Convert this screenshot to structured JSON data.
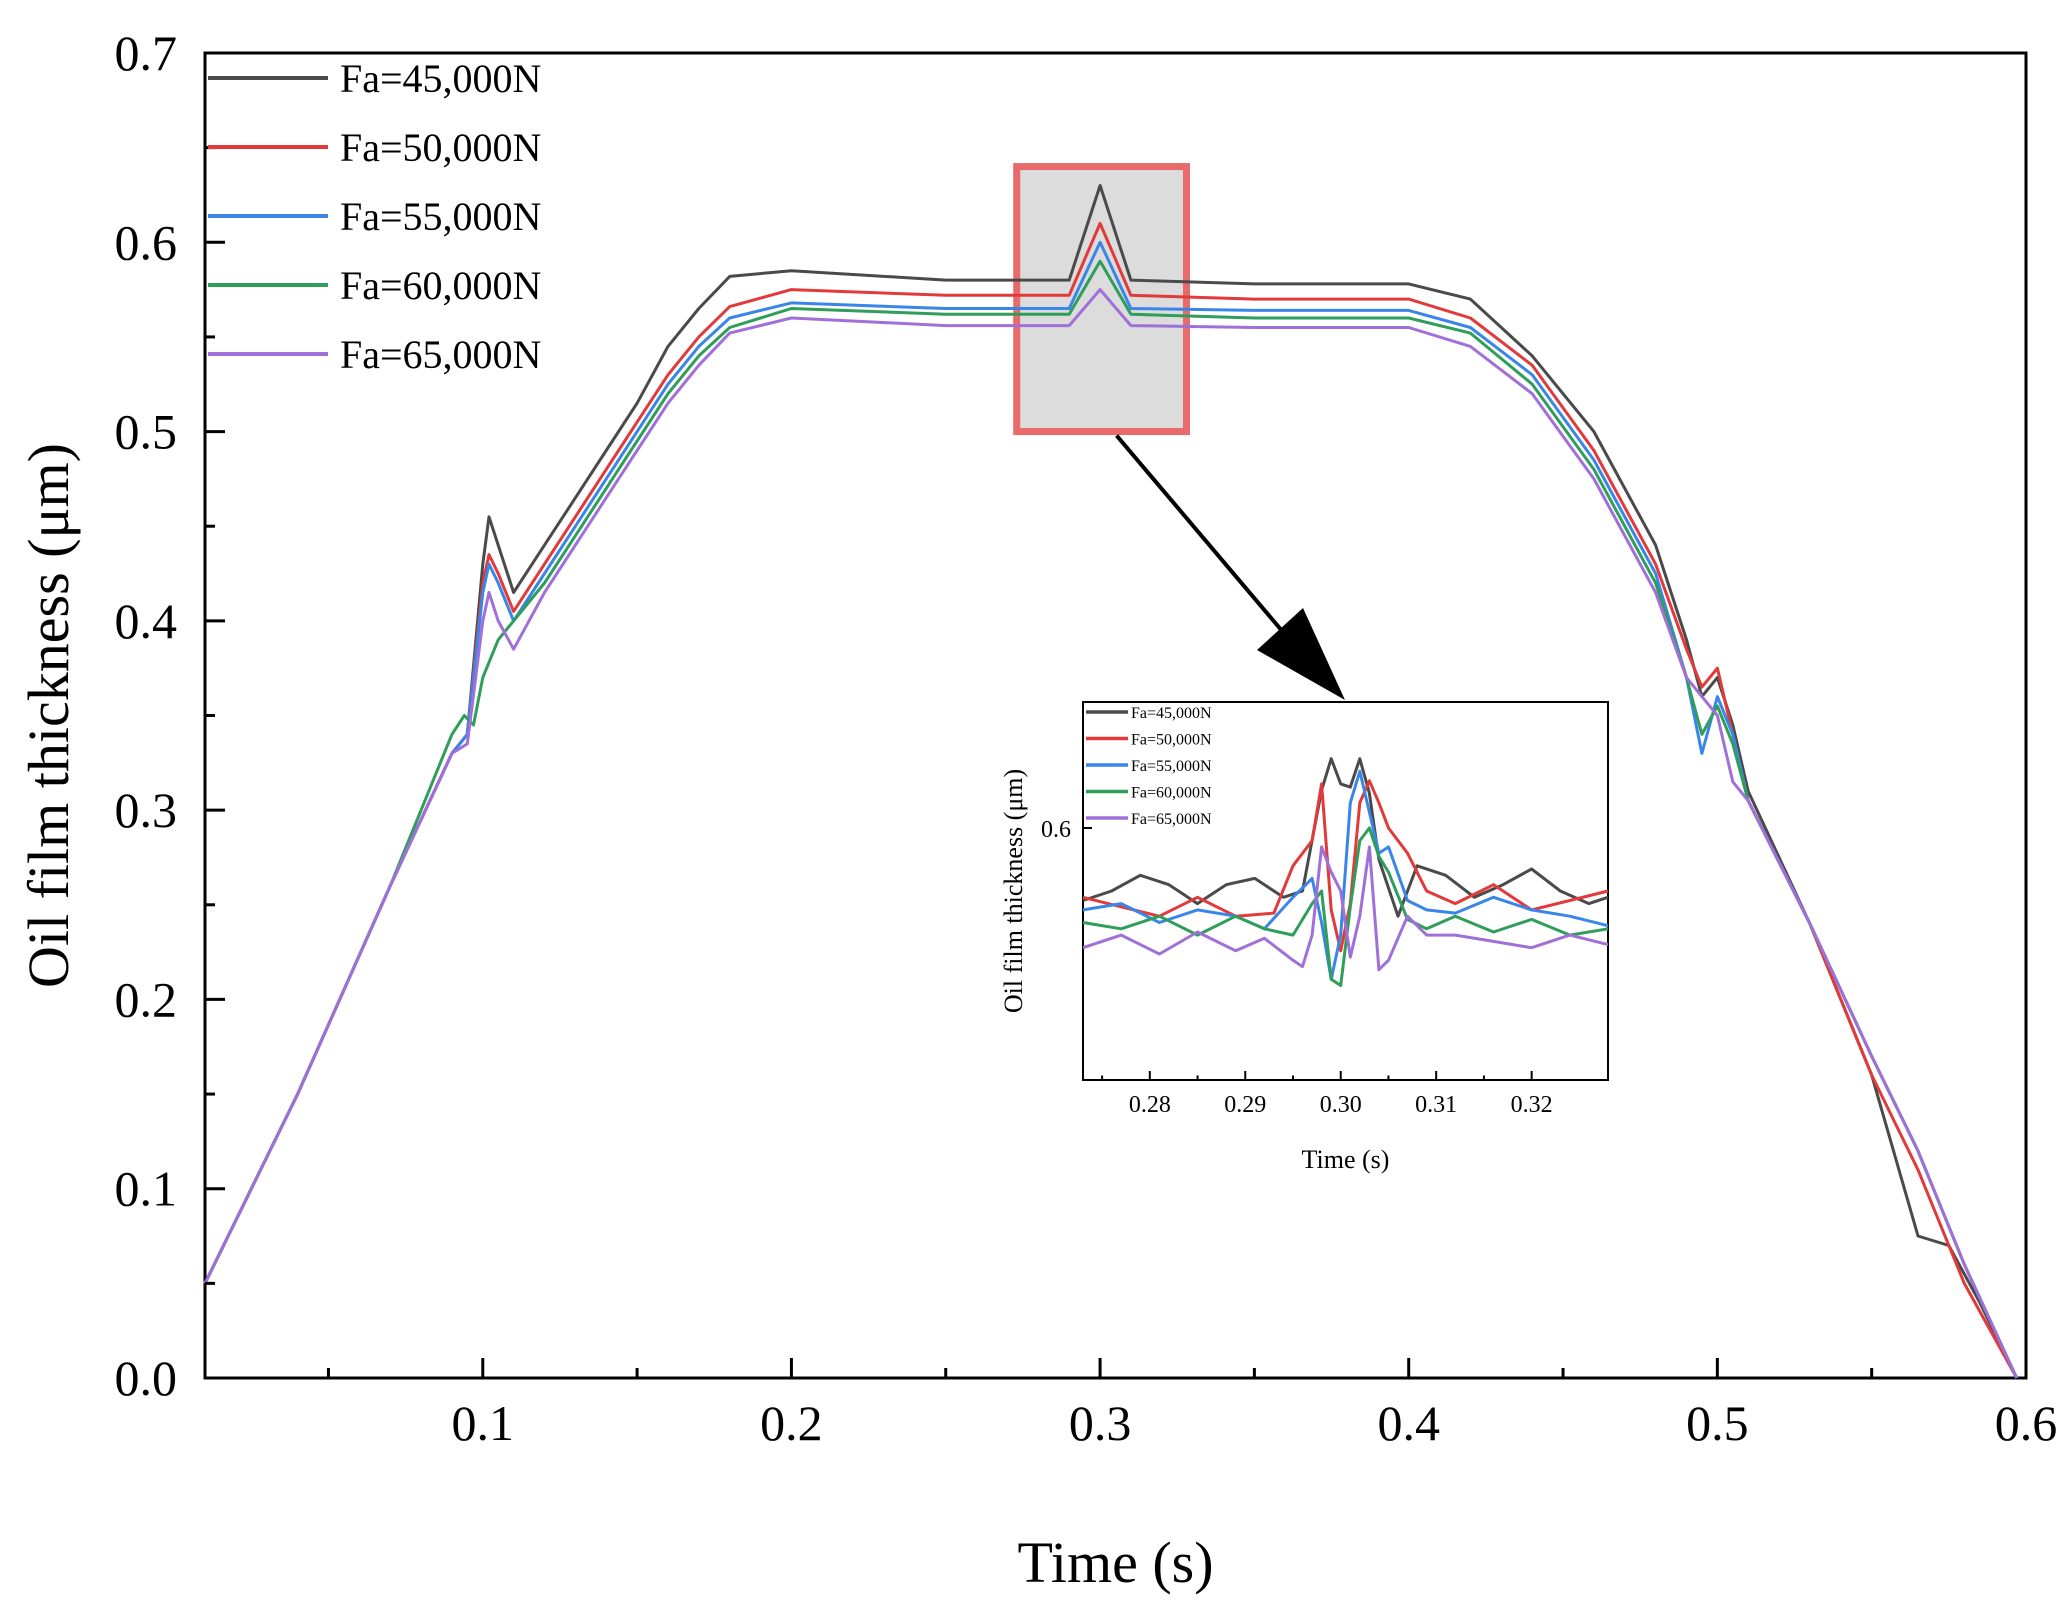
{
  "chart_data": [
    {
      "type": "line",
      "title": "",
      "xlabel": "Time (s)",
      "ylabel": "Oil film thickness (μm)",
      "xlim": [
        0.01,
        0.6
      ],
      "ylim": [
        0.0,
        0.7
      ],
      "xticks": [
        0.1,
        0.2,
        0.3,
        0.4,
        0.5,
        0.6
      ],
      "xtick_labels": [
        "0.1",
        "0.2",
        "0.3",
        "0.4",
        "0.5",
        "0.6"
      ],
      "yticks": [
        0.0,
        0.1,
        0.2,
        0.3,
        0.4,
        0.5,
        0.6,
        0.7
      ],
      "ytick_labels": [
        "0.0",
        "0.1",
        "0.2",
        "0.3",
        "0.4",
        "0.5",
        "0.6",
        "0.7"
      ],
      "legend_position": "top-left",
      "grid": false,
      "series": [
        {
          "name": "Fa=45,000N",
          "color": "#4a4a4a",
          "x": [
            0.01,
            0.04,
            0.07,
            0.09,
            0.095,
            0.1,
            0.102,
            0.105,
            0.11,
            0.12,
            0.13,
            0.14,
            0.15,
            0.16,
            0.17,
            0.18,
            0.2,
            0.25,
            0.29,
            0.3,
            0.31,
            0.35,
            0.4,
            0.42,
            0.44,
            0.46,
            0.48,
            0.49,
            0.495,
            0.5,
            0.505,
            0.51,
            0.53,
            0.55,
            0.565,
            0.575,
            0.585,
            0.597
          ],
          "y": [
            0.05,
            0.15,
            0.26,
            0.33,
            0.34,
            0.43,
            0.455,
            0.44,
            0.415,
            0.44,
            0.465,
            0.49,
            0.515,
            0.545,
            0.565,
            0.582,
            0.585,
            0.58,
            0.58,
            0.63,
            0.58,
            0.578,
            0.578,
            0.57,
            0.54,
            0.5,
            0.44,
            0.39,
            0.36,
            0.37,
            0.345,
            0.31,
            0.24,
            0.16,
            0.075,
            0.07,
            0.04,
            0.0
          ]
        },
        {
          "name": "Fa=50,000N",
          "color": "#e23a3a",
          "x": [
            0.01,
            0.04,
            0.07,
            0.09,
            0.095,
            0.1,
            0.102,
            0.105,
            0.11,
            0.12,
            0.13,
            0.14,
            0.15,
            0.16,
            0.17,
            0.18,
            0.2,
            0.25,
            0.29,
            0.3,
            0.31,
            0.35,
            0.4,
            0.42,
            0.44,
            0.46,
            0.48,
            0.49,
            0.495,
            0.5,
            0.505,
            0.51,
            0.53,
            0.55,
            0.565,
            0.58,
            0.597
          ],
          "y": [
            0.05,
            0.15,
            0.26,
            0.33,
            0.34,
            0.42,
            0.435,
            0.425,
            0.405,
            0.43,
            0.455,
            0.48,
            0.505,
            0.53,
            0.55,
            0.566,
            0.575,
            0.572,
            0.572,
            0.61,
            0.572,
            0.57,
            0.57,
            0.56,
            0.535,
            0.49,
            0.43,
            0.385,
            0.365,
            0.375,
            0.34,
            0.305,
            0.24,
            0.16,
            0.11,
            0.05,
            0.0
          ]
        },
        {
          "name": "Fa=55,000N",
          "color": "#3a86e8",
          "x": [
            0.01,
            0.04,
            0.07,
            0.09,
            0.095,
            0.1,
            0.102,
            0.105,
            0.11,
            0.12,
            0.13,
            0.14,
            0.15,
            0.16,
            0.17,
            0.18,
            0.2,
            0.25,
            0.29,
            0.3,
            0.31,
            0.35,
            0.4,
            0.42,
            0.44,
            0.46,
            0.48,
            0.49,
            0.495,
            0.5,
            0.505,
            0.51,
            0.53,
            0.55,
            0.565,
            0.58,
            0.597
          ],
          "y": [
            0.05,
            0.15,
            0.26,
            0.33,
            0.34,
            0.415,
            0.43,
            0.42,
            0.4,
            0.425,
            0.45,
            0.475,
            0.5,
            0.525,
            0.545,
            0.56,
            0.568,
            0.565,
            0.565,
            0.6,
            0.565,
            0.564,
            0.564,
            0.555,
            0.53,
            0.485,
            0.425,
            0.37,
            0.33,
            0.36,
            0.34,
            0.305,
            0.24,
            0.17,
            0.12,
            0.06,
            0.0
          ]
        },
        {
          "name": "Fa=60,000N",
          "color": "#2e9e5a",
          "x": [
            0.01,
            0.04,
            0.07,
            0.09,
            0.094,
            0.097,
            0.1,
            0.105,
            0.11,
            0.12,
            0.13,
            0.14,
            0.15,
            0.16,
            0.17,
            0.18,
            0.2,
            0.25,
            0.29,
            0.3,
            0.31,
            0.35,
            0.4,
            0.42,
            0.44,
            0.46,
            0.48,
            0.49,
            0.495,
            0.5,
            0.505,
            0.51,
            0.53,
            0.55,
            0.565,
            0.58,
            0.597
          ],
          "y": [
            0.05,
            0.15,
            0.26,
            0.34,
            0.35,
            0.345,
            0.37,
            0.39,
            0.4,
            0.42,
            0.445,
            0.47,
            0.495,
            0.52,
            0.54,
            0.555,
            0.565,
            0.562,
            0.562,
            0.59,
            0.562,
            0.56,
            0.56,
            0.552,
            0.525,
            0.48,
            0.42,
            0.37,
            0.34,
            0.355,
            0.335,
            0.305,
            0.24,
            0.17,
            0.12,
            0.06,
            0.0
          ]
        },
        {
          "name": "Fa=65,000N",
          "color": "#a070d8",
          "x": [
            0.01,
            0.04,
            0.07,
            0.09,
            0.095,
            0.1,
            0.102,
            0.105,
            0.11,
            0.12,
            0.13,
            0.14,
            0.15,
            0.16,
            0.17,
            0.18,
            0.2,
            0.25,
            0.29,
            0.3,
            0.31,
            0.35,
            0.4,
            0.42,
            0.44,
            0.46,
            0.48,
            0.49,
            0.495,
            0.5,
            0.505,
            0.51,
            0.53,
            0.55,
            0.565,
            0.58,
            0.597
          ],
          "y": [
            0.05,
            0.15,
            0.26,
            0.33,
            0.335,
            0.4,
            0.415,
            0.4,
            0.385,
            0.415,
            0.44,
            0.465,
            0.49,
            0.515,
            0.535,
            0.552,
            0.56,
            0.556,
            0.556,
            0.575,
            0.556,
            0.555,
            0.555,
            0.545,
            0.52,
            0.475,
            0.415,
            0.37,
            0.36,
            0.35,
            0.315,
            0.305,
            0.24,
            0.17,
            0.12,
            0.06,
            0.0
          ]
        }
      ],
      "annotations": [
        "zoom-box around t=0.3 s with arrow to inset"
      ]
    },
    {
      "type": "line",
      "title": "",
      "xlabel": "Time (s)",
      "ylabel": "Oil film thickness (μm)",
      "xlim": [
        0.273,
        0.328
      ],
      "ylim": [
        0.52,
        0.64
      ],
      "xticks": [
        0.28,
        0.29,
        0.3,
        0.31,
        0.32
      ],
      "xtick_labels": [
        "0.28",
        "0.29",
        "0.30",
        "0.31",
        "0.32"
      ],
      "yticks": [
        0.6
      ],
      "ytick_labels": [
        "0.6"
      ],
      "legend_position": "top-left",
      "series": [
        {
          "name": "Fa=45,000N",
          "color": "#4a4a4a",
          "x": [
            0.273,
            0.276,
            0.279,
            0.282,
            0.285,
            0.288,
            0.291,
            0.294,
            0.296,
            0.298,
            0.299,
            0.3,
            0.301,
            0.302,
            0.303,
            0.304,
            0.306,
            0.308,
            0.311,
            0.314,
            0.317,
            0.32,
            0.323,
            0.326,
            0.328
          ],
          "y": [
            0.577,
            0.58,
            0.585,
            0.582,
            0.576,
            0.582,
            0.584,
            0.578,
            0.58,
            0.612,
            0.622,
            0.614,
            0.613,
            0.622,
            0.611,
            0.59,
            0.572,
            0.588,
            0.585,
            0.578,
            0.582,
            0.587,
            0.58,
            0.576,
            0.578
          ]
        },
        {
          "name": "Fa=50,000N",
          "color": "#e23a3a",
          "x": [
            0.273,
            0.277,
            0.281,
            0.285,
            0.289,
            0.293,
            0.295,
            0.297,
            0.298,
            0.299,
            0.3,
            0.301,
            0.302,
            0.303,
            0.304,
            0.305,
            0.307,
            0.309,
            0.312,
            0.316,
            0.32,
            0.324,
            0.328
          ],
          "y": [
            0.578,
            0.575,
            0.572,
            0.578,
            0.572,
            0.573,
            0.588,
            0.596,
            0.614,
            0.574,
            0.561,
            0.576,
            0.608,
            0.615,
            0.608,
            0.6,
            0.592,
            0.58,
            0.576,
            0.582,
            0.574,
            0.577,
            0.58
          ]
        },
        {
          "name": "Fa=55,000N",
          "color": "#3a86e8",
          "x": [
            0.273,
            0.277,
            0.281,
            0.285,
            0.289,
            0.292,
            0.295,
            0.297,
            0.298,
            0.299,
            0.3,
            0.301,
            0.302,
            0.303,
            0.304,
            0.305,
            0.307,
            0.309,
            0.312,
            0.316,
            0.32,
            0.324,
            0.328
          ],
          "y": [
            0.574,
            0.576,
            0.57,
            0.574,
            0.572,
            0.568,
            0.578,
            0.584,
            0.57,
            0.552,
            0.566,
            0.608,
            0.618,
            0.605,
            0.592,
            0.594,
            0.577,
            0.574,
            0.573,
            0.578,
            0.574,
            0.572,
            0.569
          ]
        },
        {
          "name": "Fa=60,000N",
          "color": "#2e9e5a",
          "x": [
            0.273,
            0.277,
            0.281,
            0.285,
            0.289,
            0.292,
            0.295,
            0.297,
            0.298,
            0.299,
            0.3,
            0.301,
            0.302,
            0.303,
            0.304,
            0.305,
            0.307,
            0.309,
            0.312,
            0.316,
            0.32,
            0.324,
            0.328
          ],
          "y": [
            0.57,
            0.568,
            0.572,
            0.566,
            0.572,
            0.568,
            0.566,
            0.576,
            0.58,
            0.552,
            0.55,
            0.575,
            0.596,
            0.6,
            0.591,
            0.586,
            0.571,
            0.568,
            0.572,
            0.567,
            0.571,
            0.566,
            0.568
          ]
        },
        {
          "name": "Fa=65,000N",
          "color": "#a070d8",
          "x": [
            0.273,
            0.277,
            0.281,
            0.285,
            0.289,
            0.292,
            0.295,
            0.296,
            0.297,
            0.298,
            0.299,
            0.3,
            0.301,
            0.302,
            0.303,
            0.304,
            0.305,
            0.307,
            0.309,
            0.312,
            0.316,
            0.32,
            0.324,
            0.328
          ],
          "y": [
            0.562,
            0.566,
            0.56,
            0.567,
            0.561,
            0.565,
            0.558,
            0.556,
            0.566,
            0.594,
            0.586,
            0.58,
            0.559,
            0.572,
            0.594,
            0.555,
            0.558,
            0.572,
            0.566,
            0.566,
            0.564,
            0.562,
            0.566,
            0.563
          ]
        }
      ]
    }
  ]
}
